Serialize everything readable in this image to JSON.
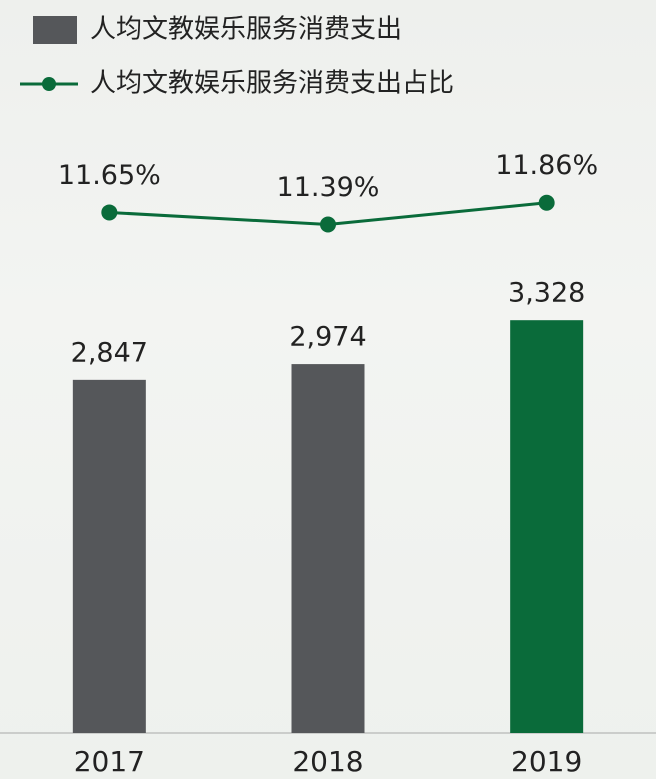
{
  "chart_data": {
    "type": "bar-line",
    "categories": [
      "2017",
      "2018",
      "2019"
    ],
    "series": [
      {
        "name": "人均文教娱乐服务消费支出",
        "type": "bar",
        "color": "#55575a",
        "colors": [
          "#55575a",
          "#55575a",
          "#0a6b3a"
        ],
        "values": [
          2847,
          2974,
          3328
        ],
        "value_labels": [
          "2,847",
          "2,974",
          "3,328"
        ]
      },
      {
        "name": "人均文教娱乐服务消费支出占比",
        "type": "line",
        "axis": "y2",
        "color": "#0a6b3a",
        "values": [
          11.65,
          11.39,
          11.86
        ],
        "value_labels": [
          "11.65%",
          "11.39%",
          "11.86%"
        ]
      }
    ],
    "ylim": [
      0,
      4700
    ],
    "y2lim": [
      0.4,
      13.0
    ],
    "legend": "top-left"
  }
}
